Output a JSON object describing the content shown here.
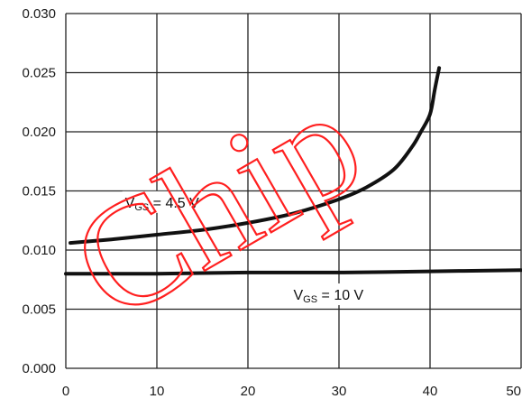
{
  "chart_data": {
    "type": "line",
    "xlim": [
      0,
      50
    ],
    "ylim": [
      0,
      0.03
    ],
    "x_ticks": [
      0,
      10,
      20,
      30,
      40,
      50
    ],
    "y_ticks": [
      "0.000",
      "0.005",
      "0.010",
      "0.015",
      "0.020",
      "0.025",
      "0.030"
    ],
    "grid": true,
    "series": [
      {
        "name": "V_GS = 4.5 V",
        "label_main": "V",
        "label_sub": "GS",
        "label_rest": " = 4.5 V",
        "label_anchor": [
          6.5,
          0.0136
        ],
        "x": [
          0.5,
          5,
          10,
          15,
          20,
          25,
          30,
          33,
          36,
          38,
          39,
          40,
          40.5,
          41
        ],
        "y": [
          0.0106,
          0.0109,
          0.0113,
          0.0117,
          0.0123,
          0.0131,
          0.0143,
          0.0153,
          0.0168,
          0.0187,
          0.02,
          0.0215,
          0.0235,
          0.0254
        ]
      },
      {
        "name": "V_GS = 10 V",
        "label_main": "V",
        "label_sub": "GS",
        "label_rest": " = 10 V",
        "label_anchor": [
          25,
          0.0058
        ],
        "x": [
          0,
          10,
          20,
          30,
          40,
          50
        ],
        "y": [
          0.008,
          0.008,
          0.0081,
          0.0081,
          0.0082,
          0.0083
        ]
      }
    ],
    "watermark": "Chip",
    "colors": {
      "line": "#111111",
      "grid": "#222222",
      "watermark": "#ff1f1f"
    }
  }
}
